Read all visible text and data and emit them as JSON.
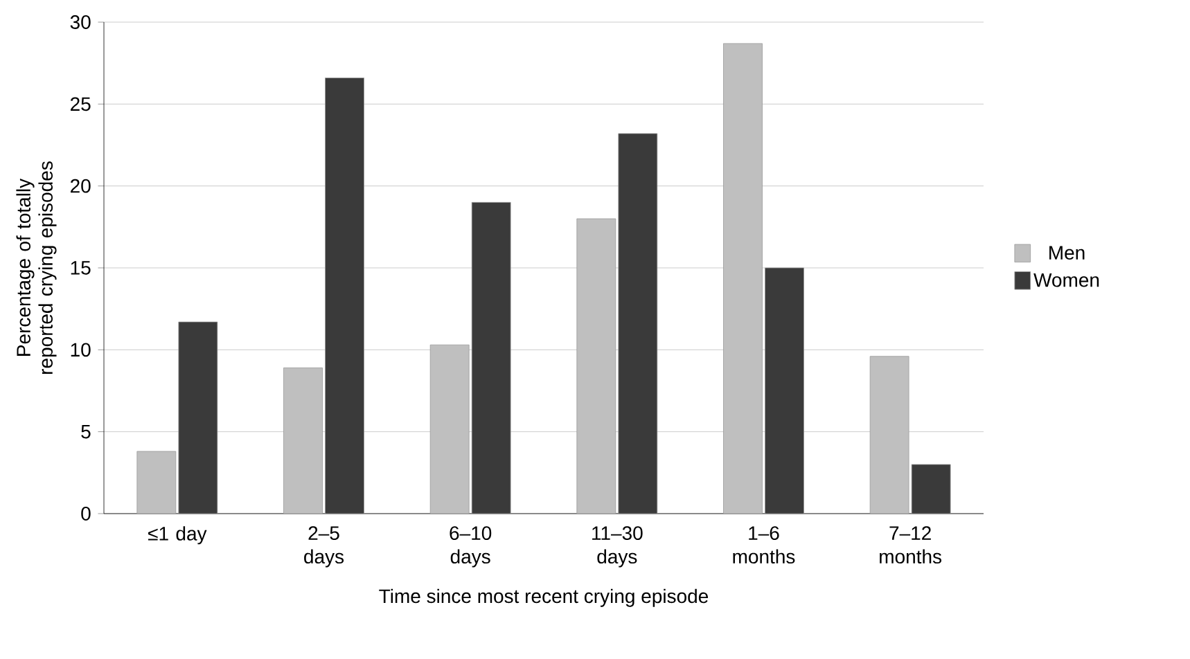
{
  "chart_data": {
    "type": "bar",
    "xlabel": "Time since most recent crying episode",
    "ylabel": "Percentage of totally reported crying episodes",
    "categories": [
      "≤1 day",
      "2–5 days",
      "6–10 days",
      "11–30 days",
      "1–6 months",
      "7–12 months"
    ],
    "series": [
      {
        "name": "Men",
        "color": "#bfbfbf",
        "values": [
          3.8,
          8.9,
          10.3,
          18.0,
          28.7,
          9.6
        ]
      },
      {
        "name": "Women",
        "color": "#3a3a3a",
        "values": [
          11.7,
          26.6,
          19.0,
          23.2,
          15.0,
          3.0
        ]
      }
    ],
    "ylim": [
      0,
      30
    ],
    "yticks": [
      0,
      5,
      10,
      15,
      20,
      25,
      30
    ],
    "grid": "y",
    "legend": "right"
  }
}
